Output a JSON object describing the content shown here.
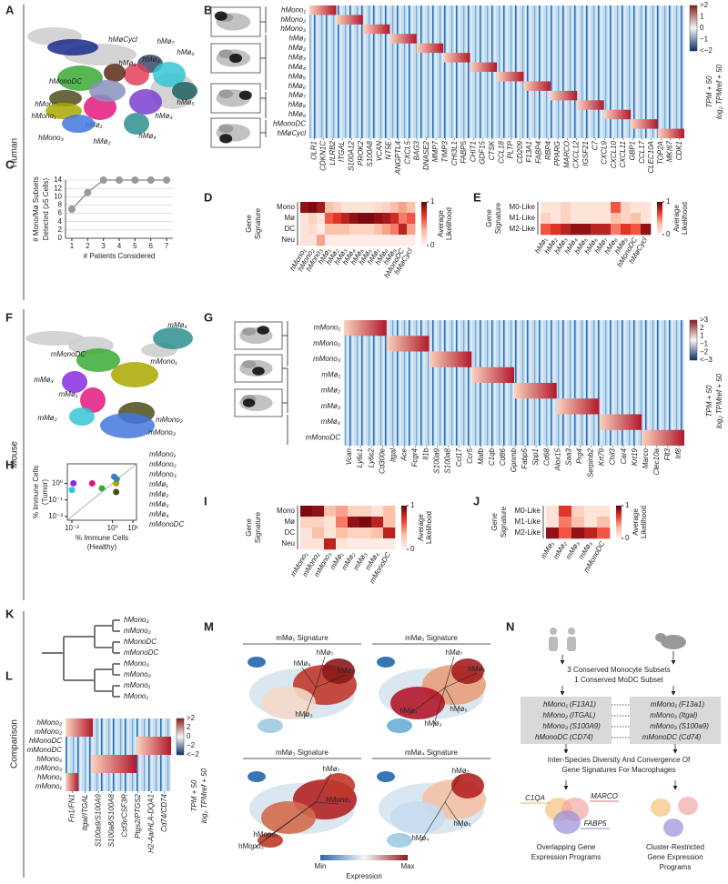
{
  "panel_labels": [
    "A",
    "B",
    "C",
    "D",
    "E",
    "F",
    "G",
    "H",
    "I",
    "J",
    "K",
    "L",
    "M",
    "N"
  ],
  "row_labels": [
    "Human",
    "Mouse",
    "Comparison"
  ],
  "palette": {
    "hMono₁": "#a8a800",
    "hMono₂": "#4d4d1a",
    "hMono₃": "#4477dd",
    "hMø₁": "#e3177d",
    "hMø₂": "#8a8fbf",
    "hMø₃": "#7a3fd0",
    "hMø₄": "#2f8f8f",
    "hMø₅": "#1f5f5f",
    "hMø₆": "#35c5d5",
    "hMø₇": "#3b4a6b",
    "hMø₈": "#e0405a",
    "hMø₉": "#5a2a1a",
    "hMonoDC": "#3aaa35",
    "hMøCycl": "#1a2a8a",
    "mMono₁": "#a8a800",
    "mMono₂": "#4d4d1a",
    "mMono₃": "#4477dd",
    "mMø₁": "#e3177d",
    "mMø₂": "#35c5d5",
    "mMø₃": "#8a2be2",
    "mMø₄": "#2f8f8f",
    "mMonoDC": "#3aaa35"
  },
  "A": {
    "clusters": [
      "hMøCycl",
      "hMø₇",
      "hMø₆",
      "hMø₈",
      "hMø₉",
      "hMonoDC",
      "hMono₂",
      "hMono₁",
      "hMø₁",
      "hMø₃",
      "hMø₅",
      "hMø₄",
      "hMø₂",
      "hMono₃"
    ]
  },
  "B": {
    "rows": [
      "hMono₁",
      "hMono₂",
      "hMono₃",
      "hMø₁",
      "hMø₂",
      "hMø₃",
      "hMø₄",
      "hMø₅",
      "hMø₆",
      "hMø₇",
      "hMø₈",
      "hMø₉",
      "hMonoDC",
      "hMøCycl"
    ],
    "genes": [
      "OLR1",
      "CDKN1C",
      "LILRB2",
      "ITGAL",
      "S100A12",
      "PROK2",
      "S100A8",
      "VCAN",
      "NT5E",
      "ANGPTL4",
      "CXCL5",
      "BAG3",
      "DNASE2",
      "MMP7",
      "TIMP3",
      "CHI3L1",
      "FABP5",
      "CHIT1",
      "GDF15",
      "CTSK",
      "CCL18",
      "PLTP",
      "CD209",
      "F13A1",
      "FABP4",
      "RBP4",
      "PPARG",
      "MARCO",
      "CXCL12",
      "IGSF21",
      "C7",
      "CXCL9",
      "CXCL10",
      "CXCL11",
      "GBP1",
      "CCL17",
      "CLEC10A",
      "TOP2A",
      "MKI67",
      "CDK1"
    ],
    "colorbar_ticks": [
      ">2",
      "1",
      "0",
      "−1",
      "<−2"
    ],
    "colorbar_title": [
      "TPM + 50",
      "log₂ TPMref + 50"
    ]
  },
  "F": {
    "clusters": [
      "mMø₄",
      "mMonoDC",
      "mMono₁",
      "mMø₃",
      "mMø₁",
      "mMø₂",
      "mMono₂",
      "mMono₃"
    ]
  },
  "G": {
    "rows": [
      "mMono₁",
      "mMono₂",
      "mMono₃",
      "mMø₁",
      "mMø₂",
      "mMø₃",
      "mMø₄",
      "mMonoDC"
    ],
    "genes": [
      "Vcan",
      "Ly6c1",
      "Ly6c2",
      "Cd300e",
      "Itgal",
      "Ace",
      "Fcgr4",
      "Il1b",
      "S100a9",
      "S100a8",
      "Ccl17",
      "Ccr5",
      "Mafb",
      "C1qb",
      "Cd86",
      "Gpnmb",
      "Fabp5",
      "Spp1",
      "Cd68",
      "Alox15",
      "Saa3",
      "Prg4",
      "Serpinb2",
      "Krt79",
      "Chil3",
      "Car4",
      "Krt19",
      "Marco",
      "Clec10a",
      "Flt3",
      "Irf8"
    ],
    "colorbar_ticks": [
      ">3",
      "2",
      "1",
      "−1",
      "−2",
      "<−3"
    ],
    "colorbar_title": [
      "TPM + 50",
      "log₂ TPMref + 50"
    ]
  },
  "K": {
    "leaves": [
      "hMono₂",
      "mMono₂",
      "hMonoDC",
      "mMonoDC",
      "hMono₃",
      "mMono₃",
      "mMono₁",
      "hMono₁"
    ]
  },
  "L": {
    "rows": [
      "hMono₂",
      "mMono₂",
      "hMonoDC",
      "mMonoDC",
      "hMono₃",
      "mMono₃",
      "hMono₁",
      "mMono₁"
    ],
    "genes": [
      "Fn1/FN1",
      "Itgal/ITGAL",
      "S100a9/S100A9",
      "S100a8/S100A8",
      "Csf3r/CSF3R",
      "Ptgs2/PTGS2",
      "H2-Aa/HLA-DQA1",
      "Cd74/CD74"
    ],
    "colorbar_ticks": [
      ">2",
      "2",
      "0",
      "−2",
      "<−2"
    ],
    "colorbar_title": [
      "TPM + 50",
      "log₂ TPMref + 50"
    ]
  },
  "M": {
    "panels": [
      {
        "title": "mMø₁ Signature",
        "labels": [
          "hMø₇",
          "hMø₈",
          "hMø₆",
          "hMø₃"
        ]
      },
      {
        "title": "mMø₂ Signature",
        "labels": [
          "hMø₇",
          "hMø₆",
          "hMø₅",
          "hMø₄",
          "hMø₃"
        ]
      },
      {
        "title": "mMø₃ Signature",
        "labels": [
          "hMø₇",
          "hMono₂",
          "hMono₁",
          "hMono₃"
        ]
      },
      {
        "title": "mMø₄ Signature",
        "labels": [
          "hMø₇",
          "hMø₅",
          "hMø₄"
        ]
      }
    ],
    "colorbar": {
      "min": "Min",
      "max": "Max",
      "label": "Expression"
    }
  },
  "N": {
    "conserved": [
      "3 Conserved Monocyte Subsets",
      "1 Conserved MoDC Subset"
    ],
    "human": [
      {
        "name": "hMono₁",
        "gene": "(F13A1)"
      },
      {
        "name": "hMono₂",
        "gene": "(ITGAL)"
      },
      {
        "name": "hMono₃",
        "gene": "(S100A9)"
      },
      {
        "name": "hMonoDC",
        "gene": "(CD74)"
      }
    ],
    "mouse": [
      {
        "name": "mMono₁",
        "gene": "(F13a1)"
      },
      {
        "name": "mMono₂",
        "gene": "(Itgal)"
      },
      {
        "name": "mMono₃",
        "gene": "(S100a9)"
      },
      {
        "name": "mMonoDC",
        "gene": "(Cd74)"
      }
    ],
    "diversity": [
      "Inter-Species Diversity And Convergence Of",
      "Gene Signatures For Macrophages"
    ],
    "genes": [
      "C1QA",
      "MARCO",
      "FABP5"
    ],
    "left_caption": [
      "Overlapping Gene",
      "Expression Programs"
    ],
    "right_caption": [
      "Cluster-Restricted",
      "Gene Expression",
      "Programs"
    ]
  },
  "chart_data": [
    {
      "type": "line",
      "x": [
        1,
        2,
        3,
        4,
        5,
        6,
        7
      ],
      "values": [
        7,
        11,
        14,
        14,
        14,
        14,
        14
      ],
      "xlim": [
        0.6,
        7.4
      ],
      "ylim": [
        0,
        14
      ],
      "xticks": [
        1,
        2,
        3,
        4,
        5,
        6,
        7
      ],
      "yticks": [
        0,
        2,
        4,
        6,
        8,
        10,
        12,
        14
      ],
      "grid": true,
      "color": "#999999",
      "x_label": "# Patients Considered",
      "y_label": [
        "# Mono/Mø Subsets",
        "Detected (≥5 Cells)"
      ]
    },
    {
      "type": "scatter",
      "log_scale": true,
      "xlim": [
        0.006,
        15
      ],
      "ylim": [
        0.006,
        15
      ],
      "xticks": [
        {
          "value": 0.01,
          "label": "10⁻²"
        },
        {
          "value": 1,
          "label": "10⁰"
        },
        {
          "value": 10,
          "label": "10¹"
        }
      ],
      "yticks": [
        {
          "value": 0.01,
          "label": "10⁻²"
        },
        {
          "value": 0.1,
          "label": "10⁻¹"
        },
        {
          "value": 1,
          "label": "10⁰"
        }
      ],
      "x_label": [
        "% Immune Cells",
        "(Healthy)"
      ],
      "y_label": [
        "% Immune Cells",
        "(Tumor)"
      ],
      "series": [
        {
          "name": "mMono₁",
          "color": "#a8a800",
          "x": [
            1.5
          ],
          "values": [
            1.0
          ]
        },
        {
          "name": "mMono₂",
          "color": "#4d4d1a",
          "x": [
            1.5
          ],
          "values": [
            0.3
          ]
        },
        {
          "name": "mMono₃",
          "color": "#4477dd",
          "x": [
            1.2
          ],
          "values": [
            2.5
          ]
        },
        {
          "name": "mMø₁",
          "color": "#e3177d",
          "x": [
            0.1
          ],
          "values": [
            1.0
          ]
        },
        {
          "name": "mMø₂",
          "color": "#35c5d5",
          "x": [
            0.01
          ],
          "values": [
            0.4
          ]
        },
        {
          "name": "mMø₃",
          "color": "#8a2be2",
          "x": [
            0.012
          ],
          "values": [
            1.0
          ]
        },
        {
          "name": "mMø₄",
          "color": "#2f8f8f",
          "x": [
            1.6
          ],
          "values": [
            1.8
          ]
        },
        {
          "name": "mMonoDC",
          "color": "#3aaa35",
          "x": [
            0.3
          ],
          "values": [
            0.5
          ]
        }
      ]
    },
    {
      "type": "heatmap",
      "rows": [
        "Mono",
        "Mø",
        "DC",
        "Neu"
      ],
      "columns": [
        "hMono₁",
        "hMono₂",
        "hMono₃",
        "hMø₁",
        "hMø₂",
        "hMø₃",
        "hMø₄",
        "hMø₅",
        "hMø₆",
        "hMø₇",
        "hMø₈",
        "hMø₉",
        "hMonoDC",
        "hMøCycl"
      ],
      "values": [
        [
          0.9,
          0.95,
          0.85,
          0.3,
          0.2,
          0.1,
          0.1,
          0.1,
          0.1,
          0.15,
          0.2,
          0.3,
          0.4,
          0.3
        ],
        [
          0.1,
          0.2,
          0.1,
          0.6,
          0.7,
          0.8,
          0.9,
          0.95,
          0.95,
          0.9,
          0.85,
          0.75,
          0.5,
          0.6
        ],
        [
          0.1,
          0.15,
          0.05,
          0.3,
          0.3,
          0.3,
          0.2,
          0.2,
          0.2,
          0.3,
          0.4,
          0.5,
          0.8,
          0.4
        ],
        [
          0.1,
          0.1,
          0.4,
          0.05,
          0.05,
          0.05,
          0.05,
          0.05,
          0.05,
          0.05,
          0.05,
          0.05,
          0.05,
          0.05
        ]
      ],
      "zlim": [
        0,
        1
      ],
      "zticks": [
        0,
        1
      ],
      "colormap": [
        "#fff5f0",
        "#fcbba1",
        "#ef3b2c",
        "#67000d"
      ],
      "y_label": [
        "Gene",
        "Signature"
      ],
      "colorbar_label": [
        "Average",
        "Likelihood"
      ]
    },
    {
      "type": "heatmap",
      "rows": [
        "M0-Like",
        "M1-Like",
        "M2-Like"
      ],
      "columns": [
        "hMø₁",
        "hMø₂",
        "hMø₃",
        "hMø₄",
        "hMø₅",
        "hMø₆",
        "hMø₇",
        "hMø₈",
        "hMø₉",
        "hMonoDC",
        "hMøCycl"
      ],
      "values": [
        [
          0.1,
          0.1,
          0.2,
          0.1,
          0.1,
          0.1,
          0.1,
          0.6,
          0.2,
          0.1,
          0.1
        ],
        [
          0.2,
          0.1,
          0.2,
          0.1,
          0.1,
          0.1,
          0.1,
          0.3,
          0.2,
          0.3,
          0.1
        ],
        [
          0.6,
          0.7,
          0.8,
          0.9,
          0.9,
          0.8,
          0.8,
          0.5,
          0.7,
          0.6,
          0.9
        ]
      ],
      "zlim": [
        0,
        1
      ],
      "zticks": [
        0,
        1
      ],
      "colormap": [
        "#fff5f0",
        "#fcbba1",
        "#ef3b2c",
        "#67000d"
      ],
      "y_label": [
        "Gene",
        "Signature"
      ],
      "colorbar_label": [
        "Average",
        "Likelihood"
      ]
    },
    {
      "type": "heatmap",
      "rows": [
        "Mono",
        "Mø",
        "DC",
        "Neu"
      ],
      "columns": [
        "mMono₁",
        "mMono₂",
        "mMono₃",
        "mMø₁",
        "mMø₂",
        "mMø₃",
        "mMø₄",
        "mMonoDC"
      ],
      "values": [
        [
          0.95,
          0.9,
          0.3,
          0.4,
          0.2,
          0.2,
          0.1,
          0.3
        ],
        [
          0.2,
          0.2,
          0.1,
          0.5,
          0.9,
          0.95,
          0.8,
          0.3
        ],
        [
          0.1,
          0.3,
          0.1,
          0.3,
          0.2,
          0.2,
          0.3,
          0.8
        ],
        [
          0.1,
          0.1,
          0.8,
          0.1,
          0.05,
          0.05,
          0.05,
          0.05
        ]
      ],
      "zlim": [
        0,
        1
      ],
      "zticks": [
        0,
        1
      ],
      "colormap": [
        "#fff5f0",
        "#fcbba1",
        "#ef3b2c",
        "#67000d"
      ],
      "y_label": [
        "Gene",
        "Signature"
      ],
      "colorbar_label": [
        "Average",
        "Likelihood"
      ]
    },
    {
      "type": "heatmap",
      "rows": [
        "M0-Like",
        "M1-Like",
        "M2-Like"
      ],
      "columns": [
        "mMø₁",
        "mMø₂",
        "mMø₃",
        "mMø₄",
        "mMonoDC"
      ],
      "values": [
        [
          0.1,
          0.7,
          0.2,
          0.1,
          0.1
        ],
        [
          0.1,
          0.5,
          0.3,
          0.1,
          0.3
        ],
        [
          0.9,
          0.6,
          0.9,
          0.8,
          0.6
        ]
      ],
      "zlim": [
        0,
        1
      ],
      "zticks": [
        0,
        1
      ],
      "colormap": [
        "#fff5f0",
        "#fcbba1",
        "#ef3b2c",
        "#67000d"
      ],
      "y_label": [
        "Gene",
        "Signature"
      ],
      "colorbar_label": [
        "Average",
        "Likelihood"
      ]
    }
  ]
}
